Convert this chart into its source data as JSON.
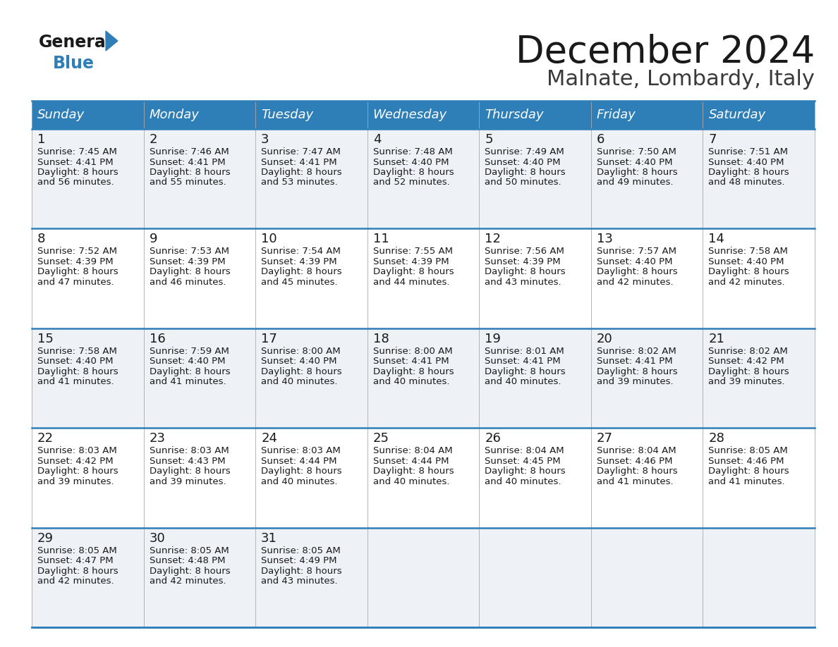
{
  "title": "December 2024",
  "subtitle": "Malnate, Lombardy, Italy",
  "header_bg": "#2e7eb8",
  "header_text_color": "#ffffff",
  "row_bg_odd": "#eef2f7",
  "row_bg_even": "#ffffff",
  "border_color": "#2e7eb8",
  "day_headers": [
    "Sunday",
    "Monday",
    "Tuesday",
    "Wednesday",
    "Thursday",
    "Friday",
    "Saturday"
  ],
  "days": [
    {
      "day": 1,
      "col": 0,
      "row": 0,
      "sunrise": "7:45 AM",
      "sunset": "4:41 PM",
      "daylight": "8 hours and 56 minutes."
    },
    {
      "day": 2,
      "col": 1,
      "row": 0,
      "sunrise": "7:46 AM",
      "sunset": "4:41 PM",
      "daylight": "8 hours and 55 minutes."
    },
    {
      "day": 3,
      "col": 2,
      "row": 0,
      "sunrise": "7:47 AM",
      "sunset": "4:41 PM",
      "daylight": "8 hours and 53 minutes."
    },
    {
      "day": 4,
      "col": 3,
      "row": 0,
      "sunrise": "7:48 AM",
      "sunset": "4:40 PM",
      "daylight": "8 hours and 52 minutes."
    },
    {
      "day": 5,
      "col": 4,
      "row": 0,
      "sunrise": "7:49 AM",
      "sunset": "4:40 PM",
      "daylight": "8 hours and 50 minutes."
    },
    {
      "day": 6,
      "col": 5,
      "row": 0,
      "sunrise": "7:50 AM",
      "sunset": "4:40 PM",
      "daylight": "8 hours and 49 minutes."
    },
    {
      "day": 7,
      "col": 6,
      "row": 0,
      "sunrise": "7:51 AM",
      "sunset": "4:40 PM",
      "daylight": "8 hours and 48 minutes."
    },
    {
      "day": 8,
      "col": 0,
      "row": 1,
      "sunrise": "7:52 AM",
      "sunset": "4:39 PM",
      "daylight": "8 hours and 47 minutes."
    },
    {
      "day": 9,
      "col": 1,
      "row": 1,
      "sunrise": "7:53 AM",
      "sunset": "4:39 PM",
      "daylight": "8 hours and 46 minutes."
    },
    {
      "day": 10,
      "col": 2,
      "row": 1,
      "sunrise": "7:54 AM",
      "sunset": "4:39 PM",
      "daylight": "8 hours and 45 minutes."
    },
    {
      "day": 11,
      "col": 3,
      "row": 1,
      "sunrise": "7:55 AM",
      "sunset": "4:39 PM",
      "daylight": "8 hours and 44 minutes."
    },
    {
      "day": 12,
      "col": 4,
      "row": 1,
      "sunrise": "7:56 AM",
      "sunset": "4:39 PM",
      "daylight": "8 hours and 43 minutes."
    },
    {
      "day": 13,
      "col": 5,
      "row": 1,
      "sunrise": "7:57 AM",
      "sunset": "4:40 PM",
      "daylight": "8 hours and 42 minutes."
    },
    {
      "day": 14,
      "col": 6,
      "row": 1,
      "sunrise": "7:58 AM",
      "sunset": "4:40 PM",
      "daylight": "8 hours and 42 minutes."
    },
    {
      "day": 15,
      "col": 0,
      "row": 2,
      "sunrise": "7:58 AM",
      "sunset": "4:40 PM",
      "daylight": "8 hours and 41 minutes."
    },
    {
      "day": 16,
      "col": 1,
      "row": 2,
      "sunrise": "7:59 AM",
      "sunset": "4:40 PM",
      "daylight": "8 hours and 41 minutes."
    },
    {
      "day": 17,
      "col": 2,
      "row": 2,
      "sunrise": "8:00 AM",
      "sunset": "4:40 PM",
      "daylight": "8 hours and 40 minutes."
    },
    {
      "day": 18,
      "col": 3,
      "row": 2,
      "sunrise": "8:00 AM",
      "sunset": "4:41 PM",
      "daylight": "8 hours and 40 minutes."
    },
    {
      "day": 19,
      "col": 4,
      "row": 2,
      "sunrise": "8:01 AM",
      "sunset": "4:41 PM",
      "daylight": "8 hours and 40 minutes."
    },
    {
      "day": 20,
      "col": 5,
      "row": 2,
      "sunrise": "8:02 AM",
      "sunset": "4:41 PM",
      "daylight": "8 hours and 39 minutes."
    },
    {
      "day": 21,
      "col": 6,
      "row": 2,
      "sunrise": "8:02 AM",
      "sunset": "4:42 PM",
      "daylight": "8 hours and 39 minutes."
    },
    {
      "day": 22,
      "col": 0,
      "row": 3,
      "sunrise": "8:03 AM",
      "sunset": "4:42 PM",
      "daylight": "8 hours and 39 minutes."
    },
    {
      "day": 23,
      "col": 1,
      "row": 3,
      "sunrise": "8:03 AM",
      "sunset": "4:43 PM",
      "daylight": "8 hours and 39 minutes."
    },
    {
      "day": 24,
      "col": 2,
      "row": 3,
      "sunrise": "8:03 AM",
      "sunset": "4:44 PM",
      "daylight": "8 hours and 40 minutes."
    },
    {
      "day": 25,
      "col": 3,
      "row": 3,
      "sunrise": "8:04 AM",
      "sunset": "4:44 PM",
      "daylight": "8 hours and 40 minutes."
    },
    {
      "day": 26,
      "col": 4,
      "row": 3,
      "sunrise": "8:04 AM",
      "sunset": "4:45 PM",
      "daylight": "8 hours and 40 minutes."
    },
    {
      "day": 27,
      "col": 5,
      "row": 3,
      "sunrise": "8:04 AM",
      "sunset": "4:46 PM",
      "daylight": "8 hours and 41 minutes."
    },
    {
      "day": 28,
      "col": 6,
      "row": 3,
      "sunrise": "8:05 AM",
      "sunset": "4:46 PM",
      "daylight": "8 hours and 41 minutes."
    },
    {
      "day": 29,
      "col": 0,
      "row": 4,
      "sunrise": "8:05 AM",
      "sunset": "4:47 PM",
      "daylight": "8 hours and 42 minutes."
    },
    {
      "day": 30,
      "col": 1,
      "row": 4,
      "sunrise": "8:05 AM",
      "sunset": "4:48 PM",
      "daylight": "8 hours and 42 minutes."
    },
    {
      "day": 31,
      "col": 2,
      "row": 4,
      "sunrise": "8:05 AM",
      "sunset": "4:49 PM",
      "daylight": "8 hours and 43 minutes."
    }
  ],
  "num_rows": 5,
  "num_cols": 7,
  "title_fontsize": 38,
  "subtitle_fontsize": 22,
  "header_fontsize": 13,
  "day_num_fontsize": 13,
  "content_fontsize": 9.5,
  "logo_general_fontsize": 17,
  "logo_blue_fontsize": 17
}
